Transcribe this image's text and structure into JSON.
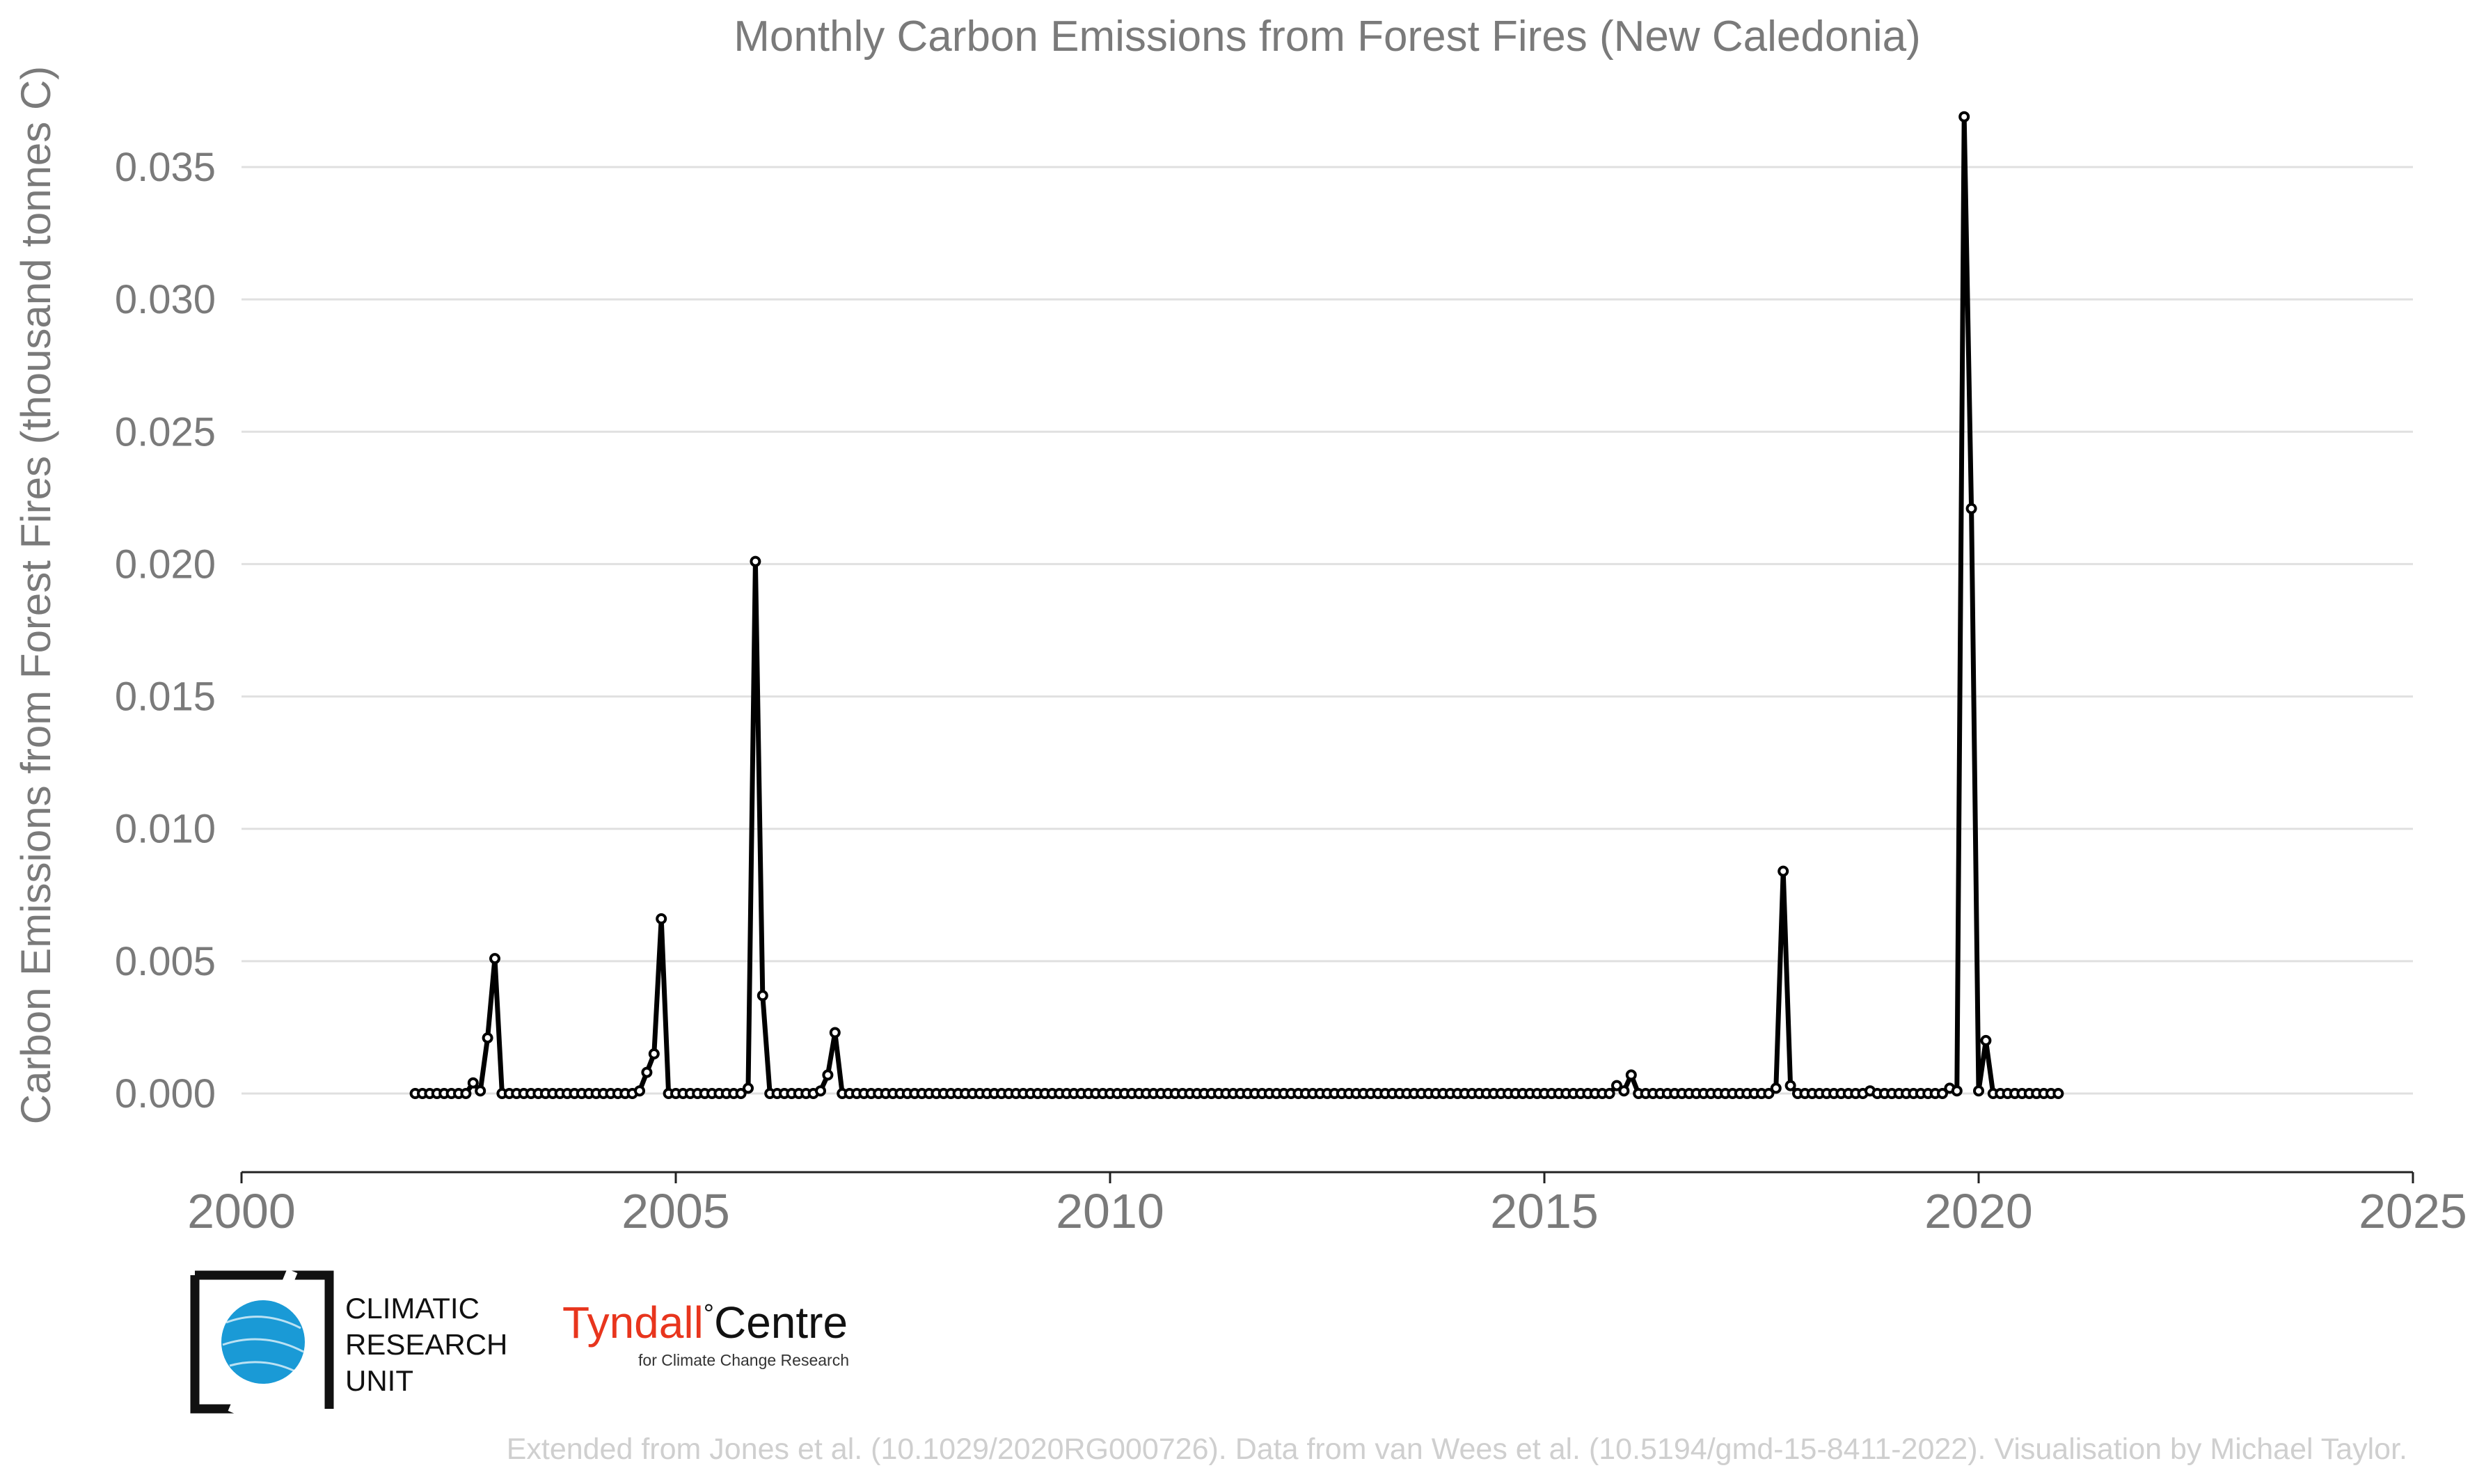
{
  "chart_data": {
    "type": "line",
    "title": "Monthly Carbon Emissions from Forest Fires (New Caledonia)",
    "xlabel": "",
    "ylabel": "Carbon Emissions from Forest Fires (thousand tonnes C)",
    "xlim": [
      2000,
      2025
    ],
    "ylim": [
      -0.003,
      0.0375
    ],
    "x_ticks": [
      "2000",
      "2005",
      "2010",
      "2015",
      "2020",
      "2025"
    ],
    "y_ticks": [
      "0.000",
      "0.005",
      "0.010",
      "0.015",
      "0.020",
      "0.025",
      "0.030",
      "0.035"
    ],
    "grid": "horizontal",
    "start_year": 2002,
    "markers": "open-circle",
    "series_color": "#000000",
    "nonzero_values": [
      {
        "date": "2002-09",
        "value": 0.0004
      },
      {
        "date": "2002-10",
        "value": 0.0001
      },
      {
        "date": "2002-11",
        "value": 0.0021
      },
      {
        "date": "2002-12",
        "value": 0.0051
      },
      {
        "date": "2004-08",
        "value": 0.0001
      },
      {
        "date": "2004-09",
        "value": 0.0008
      },
      {
        "date": "2004-10",
        "value": 0.0015
      },
      {
        "date": "2004-11",
        "value": 0.0066
      },
      {
        "date": "2005-11",
        "value": 0.0002
      },
      {
        "date": "2005-12",
        "value": 0.0201
      },
      {
        "date": "2006-01",
        "value": 0.0037
      },
      {
        "date": "2006-09",
        "value": 0.0001
      },
      {
        "date": "2006-10",
        "value": 0.0007
      },
      {
        "date": "2006-11",
        "value": 0.0023
      },
      {
        "date": "2015-11",
        "value": 0.0003
      },
      {
        "date": "2015-12",
        "value": 0.0001
      },
      {
        "date": "2016-01",
        "value": 0.0007
      },
      {
        "date": "2017-09",
        "value": 0.0002
      },
      {
        "date": "2017-10",
        "value": 0.0084
      },
      {
        "date": "2017-11",
        "value": 0.0003
      },
      {
        "date": "2018-10",
        "value": 0.0001
      },
      {
        "date": "2019-09",
        "value": 0.0002
      },
      {
        "date": "2019-10",
        "value": 0.0001
      },
      {
        "date": "2019-11",
        "value": 0.0369
      },
      {
        "date": "2019-12",
        "value": 0.0221
      },
      {
        "date": "2020-01",
        "value": 0.0001
      },
      {
        "date": "2020-02",
        "value": 0.002
      }
    ],
    "end_date": "2020-12"
  },
  "logos": {
    "cru": "CLIMATIC RESEARCH UNIT",
    "cru_lines": [
      "CLIMATIC",
      "RESEARCH",
      "UNIT"
    ],
    "tyndall_main": "Tyndall",
    "tyndall_degree": "°",
    "tyndall_centre": "Centre",
    "tyndall_sub": "for Climate Change Research",
    "tyndall_color": "#e8351d",
    "globe_color": "#1a9ad6"
  },
  "footer": "Extended from Jones et al. (10.1029/2020RG000726). Data from van Wees et al. (10.5194/gmd-15-8411-2022). Visualisation by Michael Taylor."
}
